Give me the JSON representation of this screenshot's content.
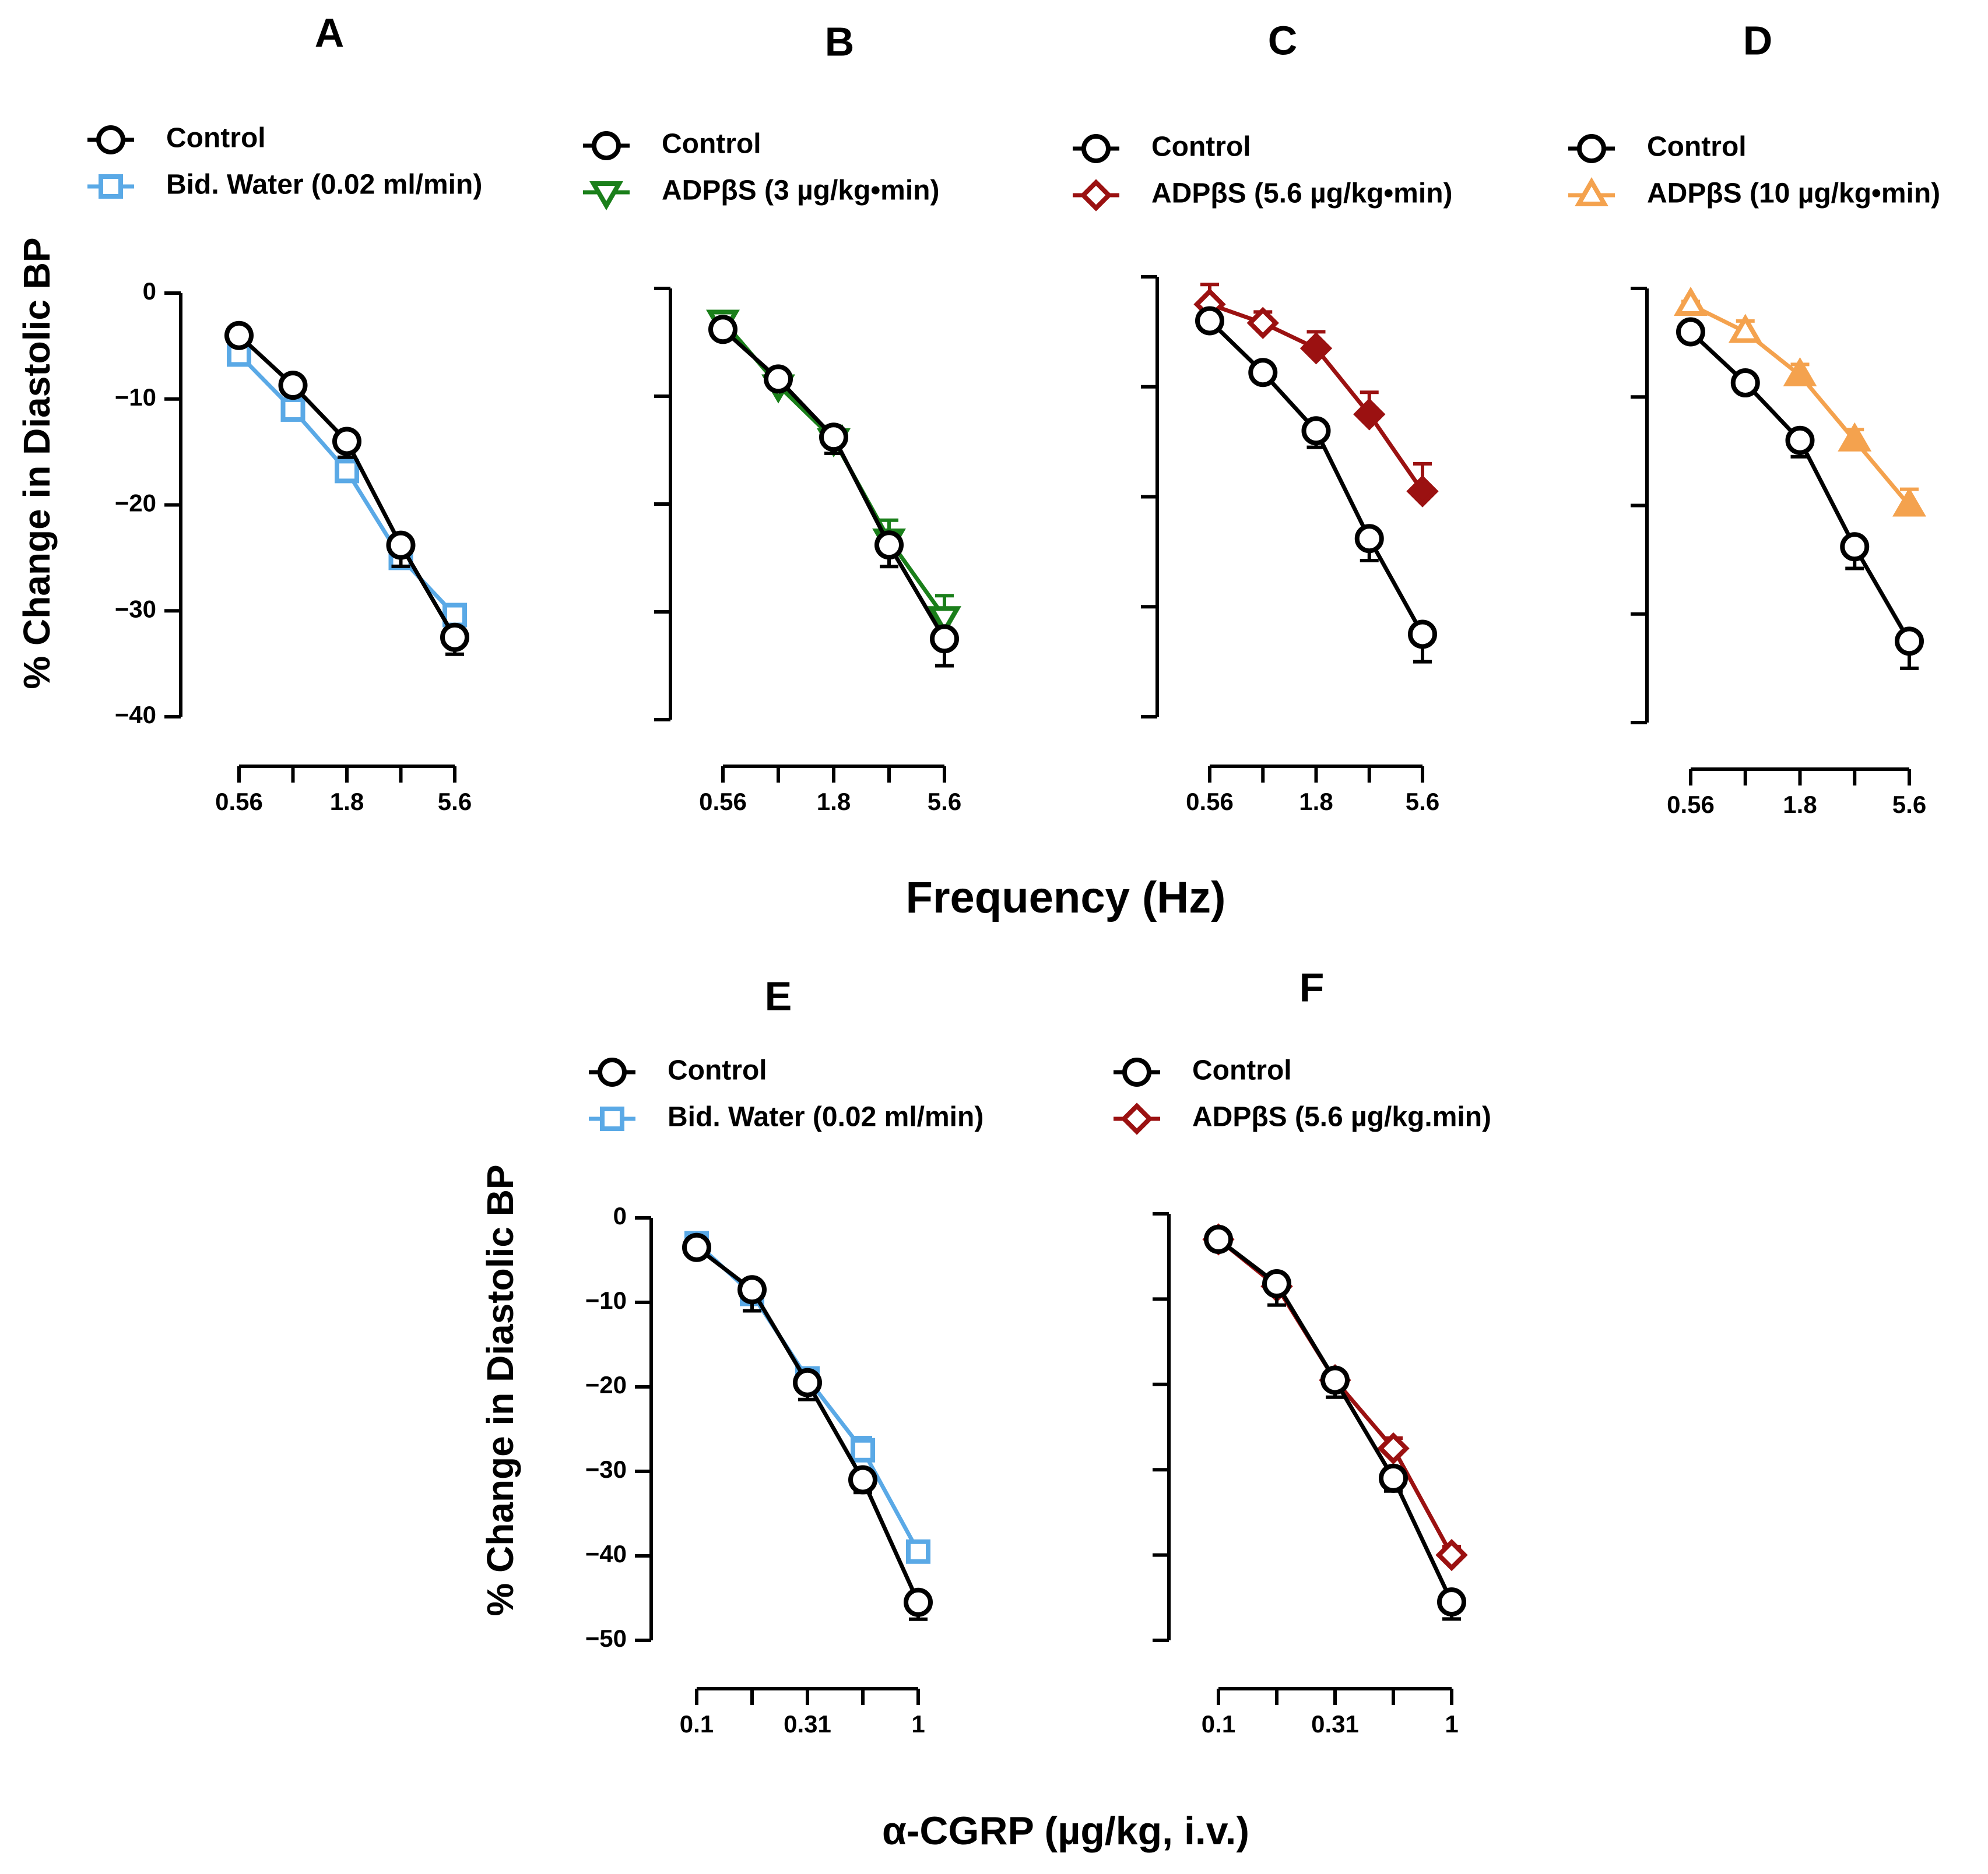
{
  "figure": {
    "ylabel_top": "% Change in Diastolic BP",
    "ylabel_bottom": "% Change in Diastolic BP",
    "xlabel_top": "Frequency (Hz)",
    "xlabel_bottom": "α-CGRP (µg/kg, i.v.)"
  },
  "colors": {
    "control": "#000000",
    "water": "#5aa9e6",
    "adp3": "#1a7f1a",
    "adp56": "#9b1111",
    "adp10": "#f4a24e"
  },
  "chart_data": [
    {
      "panel": "A",
      "type": "line",
      "x": [
        0.56,
        1,
        1.8,
        3.2,
        5.6
      ],
      "xticks": [
        "0.56",
        "1.8",
        "5.6"
      ],
      "ylim": [
        -40,
        0
      ],
      "yticks": [
        "0",
        "−10",
        "−20",
        "−30",
        "−40"
      ],
      "xlabel": "Frequency (Hz)",
      "ylabel": "% Change in Diastolic BP",
      "series": [
        {
          "name": "Control",
          "marker": "circle",
          "fill": false,
          "color": "#000000",
          "values": [
            -4.0,
            -8.7,
            -14.0,
            -23.8,
            -32.5
          ],
          "err": [
            0.4,
            0.8,
            1.5,
            2.0,
            1.6
          ]
        },
        {
          "name": "Bid. Water (0.02 ml/min)",
          "marker": "square",
          "fill": false,
          "color": "#5aa9e6",
          "values": [
            -5.8,
            -11.0,
            -16.8,
            -25.0,
            -30.4
          ],
          "err": [
            0.5,
            1.0,
            1.2,
            1.8,
            0.6
          ]
        }
      ]
    },
    {
      "panel": "B",
      "type": "line",
      "x": [
        0.56,
        1,
        1.8,
        3.2,
        5.6
      ],
      "xticks": [
        "0.56",
        "1.8",
        "5.6"
      ],
      "ylim": [
        -40,
        0
      ],
      "yticks": [],
      "series": [
        {
          "name": "Control",
          "marker": "circle",
          "fill": false,
          "color": "#000000",
          "values": [
            -3.8,
            -8.4,
            -13.8,
            -23.8,
            -32.5
          ],
          "err": [
            0.4,
            0.8,
            1.5,
            2.0,
            2.5
          ]
        },
        {
          "name": "ADPβS (3 µg/kg•min)",
          "marker": "tri-down",
          "fill": false,
          "color": "#1a7f1a",
          "values": [
            -3.0,
            -9.0,
            -14.0,
            -23.3,
            -30.5
          ],
          "err": [
            0.3,
            1.0,
            1.2,
            1.8,
            2.0
          ]
        }
      ]
    },
    {
      "panel": "C",
      "type": "line",
      "x": [
        0.56,
        1,
        1.8,
        3.2,
        5.6
      ],
      "xticks": [
        "0.56",
        "1.8",
        "5.6"
      ],
      "ylim": [
        -40,
        0
      ],
      "yticks": [],
      "series": [
        {
          "name": "Control",
          "marker": "circle",
          "fill": false,
          "color": "#000000",
          "values": [
            -4.0,
            -8.7,
            -14.0,
            -23.8,
            -32.5
          ],
          "err": [
            0.4,
            0.8,
            1.5,
            2.0,
            2.5
          ]
        },
        {
          "name": "ADPβS (5.6 µg/kg•min)",
          "marker": "diamond",
          "fill": "partial",
          "filled_index_from": 2,
          "color": "#9b1111",
          "values": [
            -2.5,
            -4.2,
            -6.5,
            -12.5,
            -19.5
          ],
          "err": [
            1.8,
            1.0,
            1.5,
            2.0,
            2.5
          ]
        }
      ]
    },
    {
      "panel": "D",
      "type": "line",
      "x": [
        0.56,
        1,
        1.8,
        3.2,
        5.6
      ],
      "xticks": [
        "0.56",
        "1.8",
        "5.6"
      ],
      "ylim": [
        -40,
        0
      ],
      "yticks": [],
      "series": [
        {
          "name": "Control",
          "marker": "circle",
          "fill": false,
          "color": "#000000",
          "values": [
            -4.0,
            -8.7,
            -14.0,
            -23.8,
            -32.5
          ],
          "err": [
            0.4,
            0.8,
            1.5,
            2.0,
            2.5
          ]
        },
        {
          "name": "ADPβS (10 µg/kg•min)",
          "marker": "tri-up",
          "fill": "partial",
          "filled_index_from": 2,
          "color": "#f4a24e",
          "values": [
            -1.5,
            -4.0,
            -8.0,
            -14.0,
            -20.0
          ],
          "err": [
            0.3,
            1.0,
            1.0,
            1.0,
            1.5
          ]
        }
      ]
    },
    {
      "panel": "E",
      "type": "line",
      "x": [
        0.1,
        0.18,
        0.31,
        0.56,
        1
      ],
      "xticks": [
        "0.1",
        "0.31",
        "1"
      ],
      "ylim": [
        -50,
        0
      ],
      "yticks": [
        "0",
        "−10",
        "−20",
        "−30",
        "−40",
        "−50"
      ],
      "xlabel": "α-CGRP (µg/kg, i.v.)",
      "ylabel": "% Change in Diastolic BP",
      "series": [
        {
          "name": "Control",
          "marker": "circle",
          "fill": false,
          "color": "#000000",
          "values": [
            -3.5,
            -8.5,
            -19.5,
            -31.0,
            -45.5
          ],
          "err": [
            0.5,
            2.5,
            2.0,
            1.5,
            2.0
          ]
        },
        {
          "name": "Bid. Water (0.02 ml/min)",
          "marker": "square",
          "fill": false,
          "color": "#5aa9e6",
          "values": [
            -3.0,
            -9.0,
            -19.0,
            -27.5,
            -39.5
          ],
          "err": [
            0.3,
            1.0,
            1.0,
            1.5,
            0.8
          ]
        }
      ]
    },
    {
      "panel": "F",
      "type": "line",
      "x": [
        0.1,
        0.18,
        0.31,
        0.56,
        1
      ],
      "xticks": [
        "0.1",
        "0.31",
        "1"
      ],
      "ylim": [
        -50,
        0
      ],
      "yticks": [],
      "series": [
        {
          "name": "Control",
          "marker": "circle",
          "fill": false,
          "color": "#000000",
          "values": [
            -3.0,
            -8.2,
            -19.5,
            -31.0,
            -45.5
          ],
          "err": [
            0.5,
            2.5,
            2.0,
            1.5,
            2.0
          ]
        },
        {
          "name": "ADPβS (5.6 µg/kg.min)",
          "marker": "diamond",
          "fill": false,
          "color": "#9b1111",
          "values": [
            -3.0,
            -8.5,
            -19.5,
            -27.5,
            -40.0
          ],
          "err": [
            0.3,
            1.0,
            1.0,
            1.2,
            1.0
          ]
        }
      ]
    }
  ]
}
